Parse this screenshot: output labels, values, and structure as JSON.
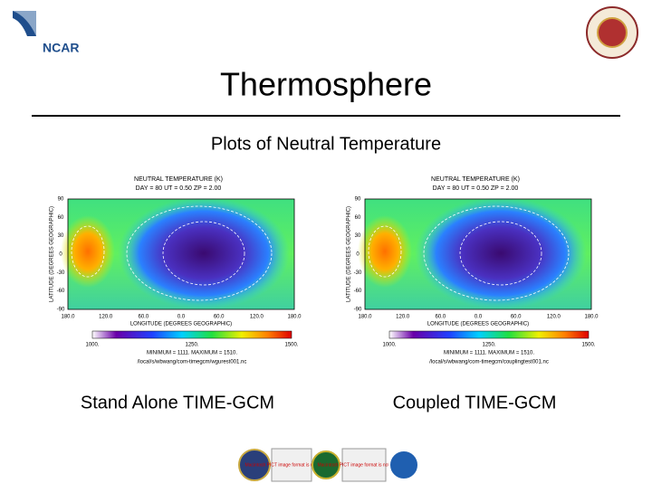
{
  "logo": {
    "text": "NCAR"
  },
  "header": {
    "title": "Thermosphere",
    "subtitle": "Plots of Neutral Temperature"
  },
  "plots": [
    {
      "header": "NEUTRAL TEMPERATURE (K)",
      "subheader": "DAY = 80 UT = 0.50 ZP = 2.00",
      "ylabel": "LATITUDE (DEGREES GEOGRAPHIC)",
      "yticks": [
        "90",
        "60",
        "30",
        "0",
        "-30",
        "-60",
        "-90"
      ],
      "xticks": [
        "180.0",
        "120.0",
        "60.0",
        "0.0",
        "60.0",
        "120.0",
        "180.0"
      ],
      "xlabel": "LONGITUDE (DEGREES GEOGRAPHIC)",
      "colorbar_labels": [
        "1000.",
        "1250.",
        "1500."
      ],
      "stats": "MINIMUM = 1111. MAXIMUM = 1510.",
      "file": "/local/s/wbwang/com-timegcm/wgurest001.nc",
      "caption": "Stand Alone TIME-GCM"
    },
    {
      "header": "NEUTRAL TEMPERATURE (K)",
      "subheader": "DAY = 80 UT = 0.50 ZP = 2.00",
      "ylabel": "LATITUDE (DEGREES GEOGRAPHIC)",
      "yticks": [
        "90",
        "60",
        "30",
        "0",
        "-30",
        "-60",
        "-90"
      ],
      "xticks": [
        "180.0",
        "120.0",
        "60.0",
        "0.0",
        "60.0",
        "120.0",
        "180.0"
      ],
      "xlabel": "LONGITUDE (DEGREES GEOGRAPHIC)",
      "colorbar_labels": [
        "1000.",
        "1250.",
        "1500."
      ],
      "stats": "MINIMUM = 1111. MAXIMUM = 1510.",
      "file": "/local/s/wbwang/com-timegcm/couplingtest001.nc",
      "caption": "Coupled TIME-GCM"
    }
  ],
  "footer": {
    "placeholder_1": "Macintosh PICT image format is not supported",
    "placeholder_2": "Macintosh PICT image format is not supported"
  }
}
